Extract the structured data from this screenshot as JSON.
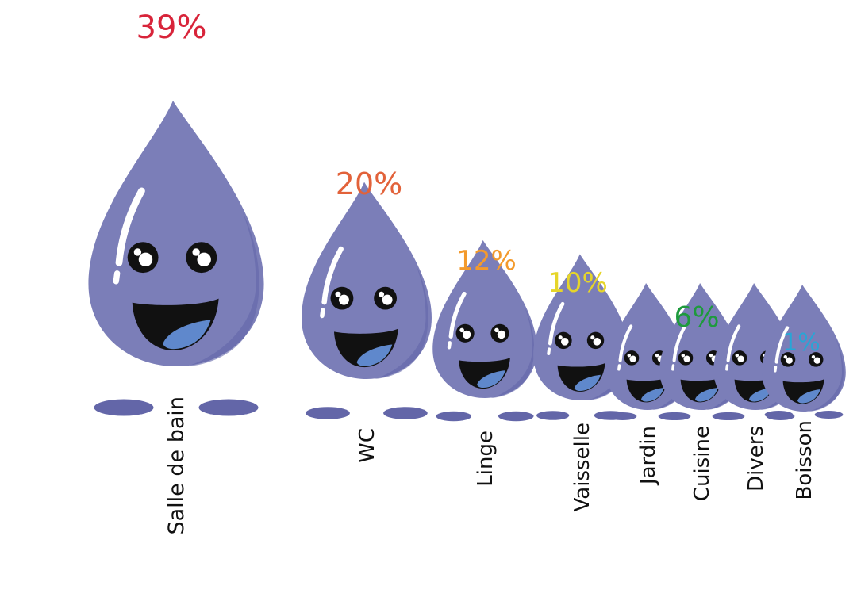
{
  "chart_data": {
    "type": "bar",
    "unit": "%",
    "categories": [
      "Salle de bain",
      "WC",
      "Linge",
      "Vaisselle",
      "Jardin",
      "Cuisine",
      "Divers",
      "Boisson"
    ],
    "values": [
      39,
      20,
      12,
      10,
      6,
      6,
      6,
      1
    ],
    "value_labels": [
      "39%",
      "20%",
      "12%",
      "10%",
      "",
      "6%",
      "",
      "1%"
    ],
    "value_label_colors": [
      "#d8243a",
      "#e2623a",
      "#f39a2c",
      "#e6d52a",
      "",
      "#1e9a3d",
      "",
      "#27a6d6"
    ],
    "mark": "water-drop-character",
    "drop_color": "#7b7eb8",
    "shadow_color": "#6366a8"
  }
}
